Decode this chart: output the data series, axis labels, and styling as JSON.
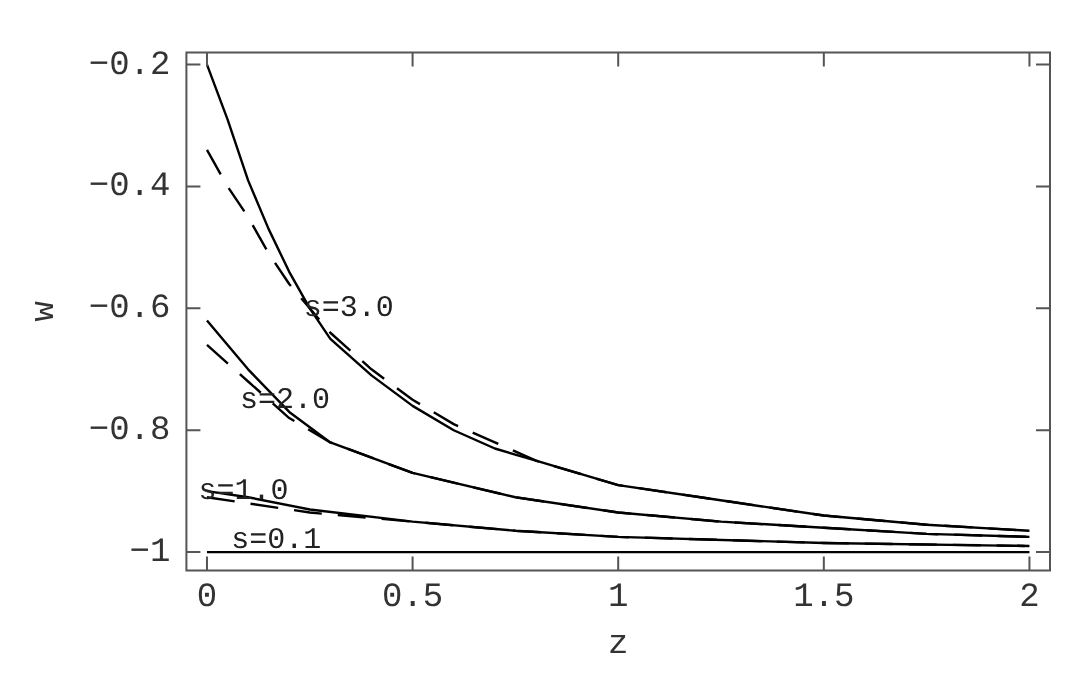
{
  "chart_data": {
    "type": "line",
    "xlabel": "z",
    "ylabel": "w",
    "xlim": [
      -0.05,
      2.05
    ],
    "ylim": [
      -1.03,
      -0.18
    ],
    "xticks": [
      0,
      0.5,
      1,
      1.5,
      2
    ],
    "yticks": [
      -1,
      -0.8,
      -0.6,
      -0.4,
      -0.2
    ],
    "grid": false,
    "legend": false,
    "marker": "none",
    "series": [
      {
        "color": "#000000",
        "line_style": "solid",
        "x": [
          0,
          0.05,
          0.1,
          0.15,
          0.2,
          0.25,
          0.3,
          0.4,
          0.5,
          0.6,
          0.7,
          0.8,
          1.0,
          1.2,
          1.5,
          1.75,
          2
        ],
        "values": [
          -0.2,
          -0.29,
          -0.39,
          -0.47,
          -0.54,
          -0.6,
          -0.65,
          -0.71,
          -0.76,
          -0.8,
          -0.83,
          -0.85,
          -0.89,
          -0.91,
          -0.94,
          -0.955,
          -0.965
        ]
      },
      {
        "color": "#000000",
        "line_style": "dashed",
        "x": [
          0,
          0.05,
          0.1,
          0.15,
          0.2,
          0.3,
          0.4,
          0.5,
          0.6,
          0.7,
          0.8,
          1.0,
          1.2,
          1.5,
          1.75,
          2
        ],
        "values": [
          -0.34,
          -0.4,
          -0.45,
          -0.51,
          -0.56,
          -0.64,
          -0.7,
          -0.75,
          -0.79,
          -0.82,
          -0.85,
          -0.89,
          -0.91,
          -0.94,
          -0.955,
          -0.965
        ]
      },
      {
        "color": "#000000",
        "line_style": "solid",
        "x": [
          0,
          0.1,
          0.2,
          0.3,
          0.5,
          0.75,
          1,
          1.25,
          1.5,
          1.75,
          2
        ],
        "values": [
          -0.62,
          -0.7,
          -0.77,
          -0.82,
          -0.87,
          -0.91,
          -0.935,
          -0.95,
          -0.96,
          -0.97,
          -0.975
        ]
      },
      {
        "color": "#000000",
        "line_style": "dashed",
        "x": [
          0,
          0.1,
          0.2,
          0.3,
          0.5,
          0.75,
          1,
          1.25,
          1.5,
          1.75,
          2
        ],
        "values": [
          -0.66,
          -0.72,
          -0.78,
          -0.82,
          -0.87,
          -0.91,
          -0.935,
          -0.95,
          -0.96,
          -0.97,
          -0.975
        ]
      },
      {
        "color": "#000000",
        "line_style": "solid",
        "x": [
          0,
          0.1,
          0.25,
          0.5,
          0.75,
          1,
          1.5,
          2
        ],
        "values": [
          -0.9,
          -0.91,
          -0.93,
          -0.95,
          -0.965,
          -0.975,
          -0.985,
          -0.99
        ]
      },
      {
        "color": "#000000",
        "line_style": "dashed",
        "x": [
          0,
          0.1,
          0.25,
          0.5,
          0.75,
          1,
          1.5,
          2
        ],
        "values": [
          -0.91,
          -0.92,
          -0.935,
          -0.95,
          -0.965,
          -0.975,
          -0.985,
          -0.99
        ]
      },
      {
        "color": "#000000",
        "line_style": "solid",
        "x": [
          0,
          2
        ],
        "values": [
          -1,
          -1
        ]
      }
    ],
    "annotations": [
      "s=3.0",
      "s=2.0",
      "s=1.0",
      "s=0.1"
    ]
  }
}
